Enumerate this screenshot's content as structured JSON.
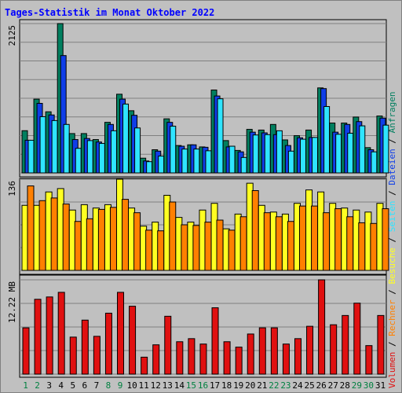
{
  "chart_data": {
    "type": "bar",
    "title": "Tages-Statistik im Monat Oktober 2022",
    "days": [
      "1",
      "2",
      "3",
      "4",
      "5",
      "6",
      "7",
      "8",
      "9",
      "10",
      "11",
      "12",
      "13",
      "14",
      "15",
      "16",
      "17",
      "18",
      "19",
      "20",
      "21",
      "22",
      "23",
      "24",
      "25",
      "26",
      "27",
      "28",
      "29",
      "30",
      "31"
    ],
    "weekend_days": [
      "1",
      "2",
      "8",
      "9",
      "15",
      "16",
      "22",
      "23",
      "29",
      "30"
    ],
    "colors": {
      "anfragen": "#007f5f",
      "dateien": "#0f3ee8",
      "seiten": "#2fe4ff",
      "besuche": "#ffff22",
      "rechner": "#ff8000",
      "volumen": "#e01010",
      "weekend_label": "#008040",
      "weekday_label": "#000000",
      "title": "#0000ff",
      "background": "#c0c0c0"
    },
    "panels": [
      {
        "id": "hits",
        "ymax": 2125,
        "ymax_label": "2125",
        "right_label_parts": [
          {
            "text": "Seiten",
            "color": "#2fe4ff"
          },
          {
            "text": " / ",
            "color": "#000000"
          },
          {
            "text": "Dateien",
            "color": "#0f3ee8"
          },
          {
            "text": " / ",
            "color": "#000000"
          },
          {
            "text": "Anfragen",
            "color": "#007f5f"
          }
        ],
        "series": [
          {
            "name": "Anfragen",
            "color": "#007f5f",
            "values": [
              601,
              1050,
              870,
              2125,
              560,
              560,
              475,
              720,
              1120,
              885,
              210,
              330,
              770,
              390,
              400,
              370,
              1180,
              460,
              320,
              620,
              610,
              690,
              470,
              530,
              610,
              1210,
              710,
              710,
              795,
              360,
              810
            ]
          },
          {
            "name": "Dateien",
            "color": "#0f3ee8",
            "values": [
              465,
              990,
              825,
              1670,
              475,
              490,
              440,
              690,
              1050,
              820,
              170,
              310,
              720,
              380,
              400,
              365,
              1095,
              370,
              300,
              580,
              570,
              545,
              390,
              500,
              505,
              1200,
              580,
              690,
              730,
              330,
              780
            ]
          },
          {
            "name": "Seiten",
            "color": "#2fe4ff",
            "values": [
              465,
              800,
              745,
              690,
              350,
              460,
              420,
              600,
              980,
              640,
              160,
              240,
              665,
              340,
              340,
              315,
              1055,
              380,
              220,
              540,
              545,
              600,
              310,
              480,
              505,
              945,
              550,
              565,
              670,
              300,
              680
            ]
          }
        ]
      },
      {
        "id": "visits",
        "ymax": 136,
        "ymax_label": "136",
        "right_label_parts": [
          {
            "text": "Besuche",
            "color": "#ffff22"
          },
          {
            "text": " / ",
            "color": "#000000"
          },
          {
            "text": "Rechner",
            "color": "#ff8000"
          }
        ],
        "series": [
          {
            "name": "Besuche",
            "color": "#ffff22",
            "values": [
              97,
              97,
              117,
              122,
              90,
              98,
              93,
              98,
              136,
              93,
              66,
              72,
              112,
              79,
              72,
              90,
              100,
              62,
              84,
              130,
              97,
              87,
              84,
              100,
              120,
              117,
              100,
              93,
              90,
              87,
              100
            ]
          },
          {
            "name": "Rechner",
            "color": "#ff8000",
            "values": [
              126,
              104,
              108,
              99,
              73,
              77,
              91,
              94,
              106,
              86,
              60,
              59,
              102,
              68,
              67,
              72,
              75,
              60,
              80,
              119,
              86,
              80,
              73,
              96,
              96,
              86,
              92,
              80,
              71,
              70,
              92
            ]
          }
        ]
      },
      {
        "id": "volume",
        "ymax": 12.22,
        "ymax_label": "12.22 MB",
        "right_label_parts": [
          {
            "text": "Volumen",
            "color": "#e01010"
          },
          {
            "text": " / ",
            "color": "#000000"
          },
          {
            "text": "Rechner",
            "color": "#ff8000"
          },
          {
            "text": " / ",
            "color": "#000000"
          },
          {
            "text": "Besuche",
            "color": "#ffff22"
          },
          {
            "text": " / ",
            "color": "#000000"
          },
          {
            "text": "Seiten",
            "color": "#2fe4ff"
          },
          {
            "text": " / ",
            "color": "#000000"
          },
          {
            "text": "Dateien",
            "color": "#0f3ee8"
          },
          {
            "text": " / ",
            "color": "#000000"
          },
          {
            "text": "Anfragen",
            "color": "#007f5f"
          }
        ],
        "series": [
          {
            "name": "Volumen",
            "color": "#e01010",
            "values": [
              6.0,
              9.7,
              10.0,
              10.6,
              4.8,
              7.0,
              4.9,
              7.9,
              10.6,
              8.8,
              2.2,
              3.8,
              7.5,
              4.2,
              4.6,
              3.9,
              8.6,
              4.2,
              3.5,
              5.2,
              6.0,
              6.0,
              3.9,
              4.6,
              6.2,
              12.22,
              6.4,
              7.6,
              9.2,
              3.7,
              7.6
            ]
          }
        ]
      }
    ],
    "grid": true
  }
}
